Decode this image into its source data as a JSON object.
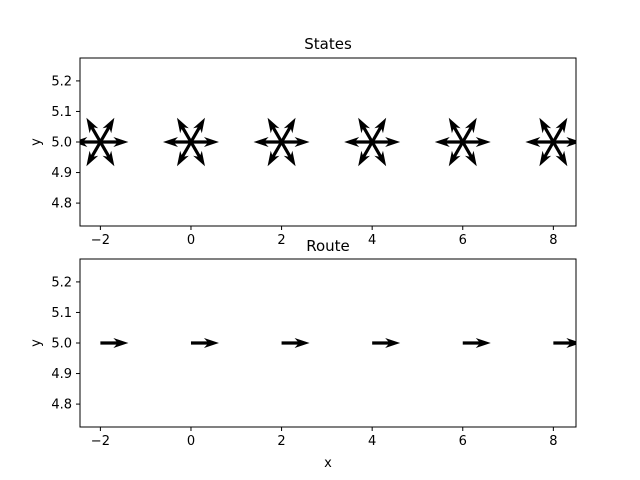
{
  "chart_data": [
    {
      "type": "quiver",
      "title": "States",
      "xlabel": "",
      "ylabel": "y",
      "xlim": [
        -2.45,
        8.5
      ],
      "ylim": [
        4.725,
        5.275
      ],
      "xticks": [
        -2,
        0,
        2,
        4,
        6,
        8
      ],
      "xtick_labels": [
        "−2",
        "0",
        "2",
        "4",
        "6",
        "8"
      ],
      "yticks": [
        4.8,
        4.9,
        5.0,
        5.1,
        5.2
      ],
      "ytick_labels": [
        "4.8",
        "4.9",
        "5.0",
        "5.1",
        "5.2"
      ],
      "x": [
        -2,
        0,
        2,
        4,
        6,
        8
      ],
      "y": [
        5.0,
        5.0,
        5.0,
        5.0,
        5.0,
        5.0
      ],
      "arrow_angles_deg": [
        0,
        60,
        120,
        180,
        240,
        300
      ],
      "color": "#000000",
      "grid": false
    },
    {
      "type": "quiver",
      "title": "Route",
      "xlabel": "x",
      "ylabel": "y",
      "xlim": [
        -2.45,
        8.5
      ],
      "ylim": [
        4.725,
        5.275
      ],
      "xticks": [
        -2,
        0,
        2,
        4,
        6,
        8
      ],
      "xtick_labels": [
        "−2",
        "0",
        "2",
        "4",
        "6",
        "8"
      ],
      "yticks": [
        4.8,
        4.9,
        5.0,
        5.1,
        5.2
      ],
      "ytick_labels": [
        "4.8",
        "4.9",
        "5.0",
        "5.1",
        "5.2"
      ],
      "x": [
        -2,
        0,
        2,
        4,
        6,
        8
      ],
      "y": [
        5.0,
        5.0,
        5.0,
        5.0,
        5.0,
        5.0
      ],
      "arrow_angles_deg": [
        0
      ],
      "color": "#000000",
      "grid": false
    }
  ]
}
